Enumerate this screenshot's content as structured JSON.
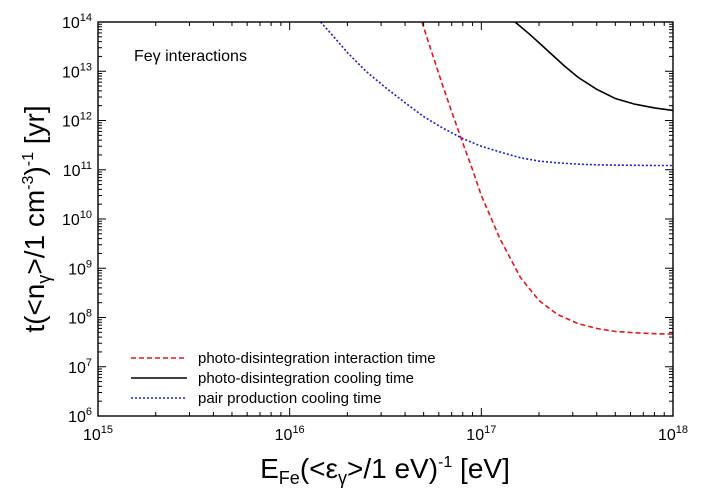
{
  "chart_data": {
    "type": "line",
    "title": "",
    "annotation": "Feγ interactions",
    "xlabel": {
      "main": "E",
      "sub": "Fe",
      "paren_open": "(<ε",
      "paren_sub": "γ",
      "paren_close": ">/1 eV)",
      "exp": "-1",
      "unit": " [eV]"
    },
    "ylabel": {
      "main": "t(<n",
      "sub": "γ",
      "mid": ">/1 cm",
      "exp1": "-3",
      "mid2": ")",
      "exp2": "-1",
      "unit": " [yr]"
    },
    "x_scale": "log",
    "y_scale": "log",
    "xlim": [
      1000000000000000.0,
      1e+18
    ],
    "ylim": [
      1000000.0,
      100000000000000.0
    ],
    "x_tick_exponents": [
      "15",
      "16",
      "17",
      "18"
    ],
    "y_tick_exponents": [
      "6",
      "7",
      "8",
      "9",
      "10",
      "11",
      "12",
      "13",
      "14"
    ],
    "tick_base": "10",
    "grid": false,
    "legend_position": "bottom-left",
    "series": [
      {
        "name": "photo-disintegration interaction time",
        "color": "#e8141a",
        "style": "dashed",
        "x": [
          4.9e+16,
          5.5e+16,
          6.3e+16,
          7.1e+16,
          8e+16,
          9e+16,
          1e+17,
          1.25e+17,
          1.6e+17,
          2e+17,
          2.5e+17,
          3.2e+17,
          4e+17,
          5e+17,
          6.3e+17,
          8e+17,
          1e+18
        ],
        "y": [
          100000000000000.0,
          25000000000000.0,
          5000000000000.0,
          1300000000000.0,
          350000000000.0,
          100000000000.0,
          30000000000.0,
          4000000000.0,
          650000000.0,
          220000000.0,
          115000000.0,
          75000000.0,
          60000000.0,
          52000000.0,
          49000000.0,
          47000000.0,
          46000000.0
        ]
      },
      {
        "name": "photo-disintegration cooling time",
        "color": "#000000",
        "style": "solid",
        "x": [
          1.5e+17,
          1.8e+17,
          2.2e+17,
          2.7e+17,
          3.2e+17,
          4e+17,
          5e+17,
          6.3e+17,
          8e+17,
          1e+18
        ],
        "y": [
          100000000000000.0,
          55000000000000.0,
          27000000000000.0,
          13000000000000.0,
          7500000000000.0,
          4300000000000.0,
          2800000000000.0,
          2150000000000.0,
          1800000000000.0,
          1600000000000.0
        ]
      },
      {
        "name": "pair production cooling time",
        "color": "#1a1ad6",
        "style": "dotted",
        "x": [
          1.45e+16,
          1.7e+16,
          2e+16,
          2.5e+16,
          3.2e+16,
          4e+16,
          5e+16,
          6.3e+16,
          8e+16,
          1e+17,
          1.3e+17,
          1.6e+17,
          2e+17,
          2.5e+17,
          3.2e+17,
          4e+17,
          5e+17,
          6.3e+17,
          8e+17,
          1e+18
        ],
        "y": [
          100000000000000.0,
          50000000000000.0,
          24000000000000.0,
          10000000000000.0,
          4500000000000.0,
          2300000000000.0,
          1200000000000.0,
          700000000000.0,
          430000000000.0,
          300000000000.0,
          220000000000.0,
          175000000000.0,
          150000000000.0,
          138000000000.0,
          130000000000.0,
          126000000000.0,
          124000000000.0,
          123000000000.0,
          122000000000.0,
          122000000000.0
        ]
      }
    ]
  }
}
